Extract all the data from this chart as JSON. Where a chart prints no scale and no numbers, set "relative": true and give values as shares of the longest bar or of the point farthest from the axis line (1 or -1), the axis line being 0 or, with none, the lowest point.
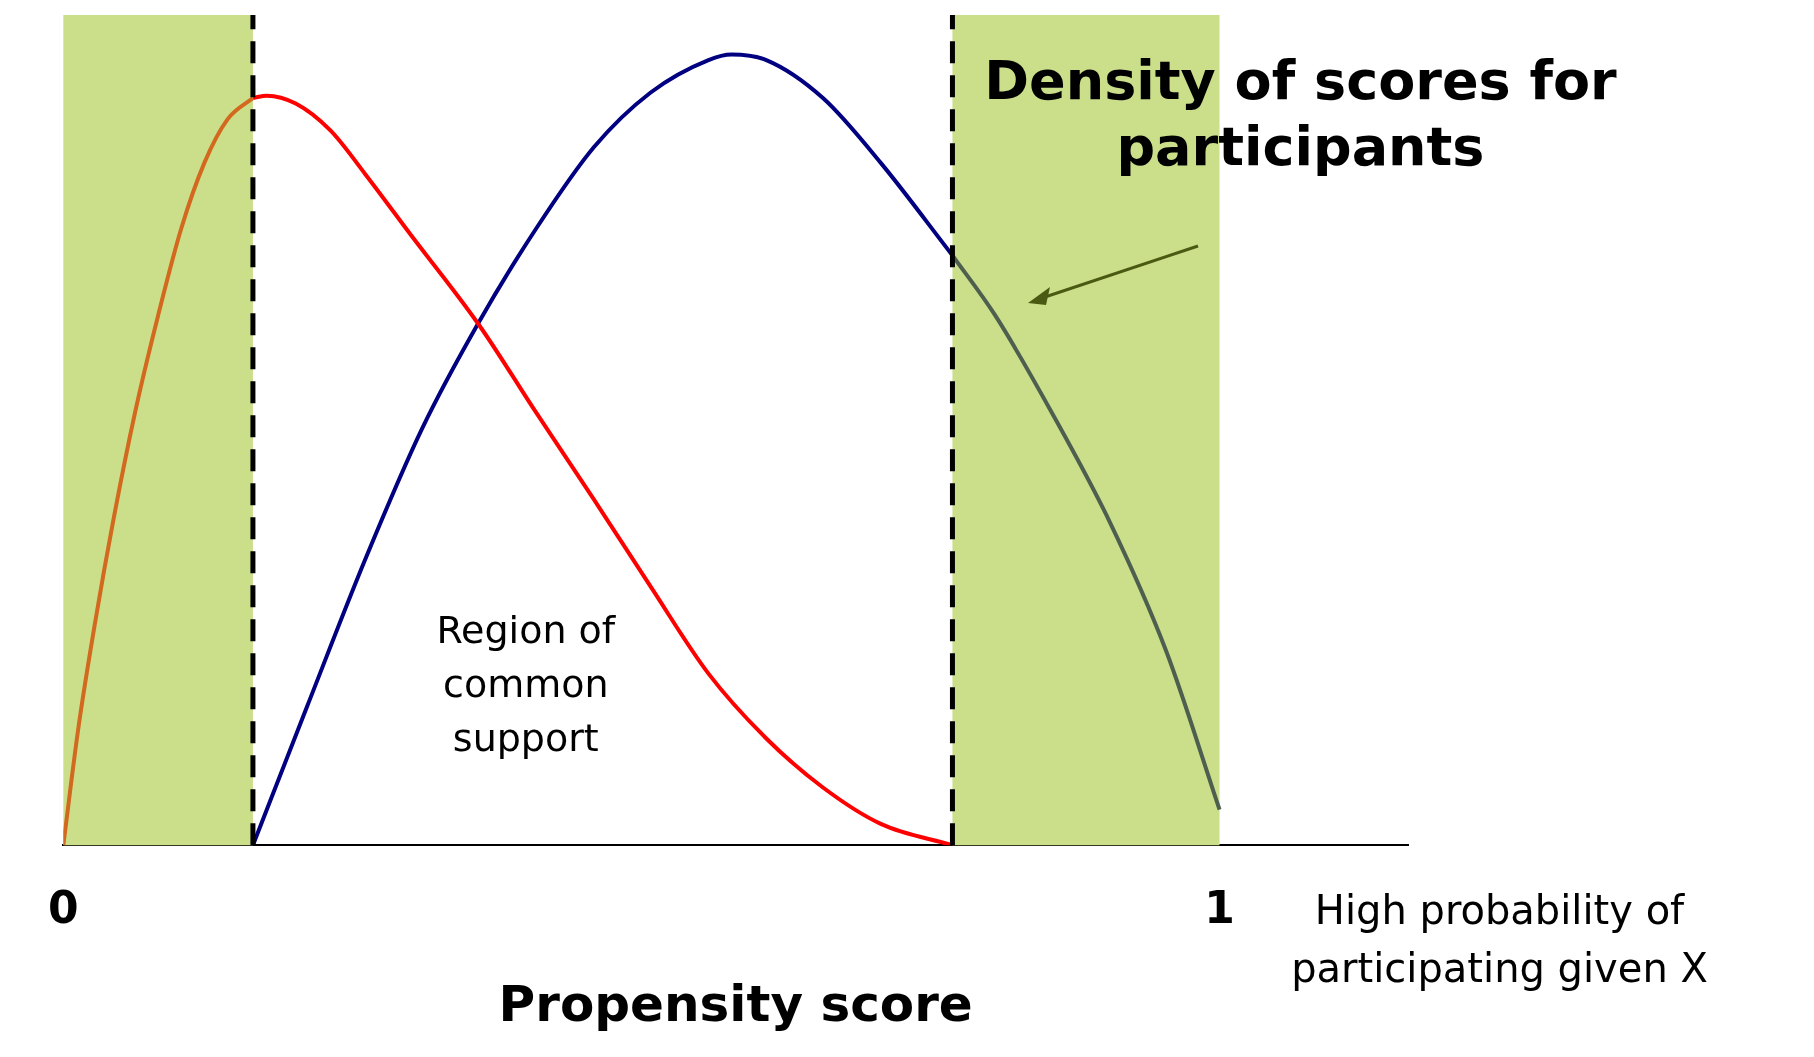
{
  "chart_data": {
    "type": "line",
    "relative": true,
    "xlabel": "Propensity score",
    "xlim": [
      0,
      1.163
    ],
    "xticks": [
      0,
      1
    ],
    "grid": false,
    "legend": false,
    "marker": "none",
    "series": [
      {
        "color": "#d2691e",
        "x": [
          0,
          0.013,
          0.028,
          0.043,
          0.062,
          0.082,
          0.102,
          0.122,
          0.142,
          0.164
        ],
        "values": [
          0,
          0.148,
          0.286,
          0.409,
          0.547,
          0.67,
          0.78,
          0.863,
          0.918,
          0.945
        ]
      },
      {
        "color": "#ff0000",
        "x": [
          0.164,
          0.176,
          0.201,
          0.231,
          0.261,
          0.3,
          0.36,
          0.409,
          0.459,
          0.508,
          0.558,
          0.608,
          0.657,
          0.707,
          0.769
        ],
        "values": [
          0.945,
          0.948,
          0.938,
          0.904,
          0.849,
          0.773,
          0.657,
          0.547,
          0.437,
          0.327,
          0.217,
          0.135,
          0.073,
          0.027,
          0
        ]
      },
      {
        "color": "#000080",
        "x": [
          0.164,
          0.211,
          0.261,
          0.31,
          0.36,
          0.409,
          0.459,
          0.508,
          0.558,
          0.578,
          0.608,
          0.657,
          0.707,
          0.769
        ],
        "values": [
          0,
          0.176,
          0.361,
          0.526,
          0.663,
          0.78,
          0.883,
          0.952,
          0.993,
          1,
          0.993,
          0.945,
          0.863,
          0.746
        ]
      },
      {
        "color": "#4f5f4f",
        "x": [
          0.769,
          0.806,
          0.855,
          0.905,
          0.954,
          1.0
        ],
        "values": [
          0.746,
          0.67,
          0.547,
          0.409,
          0.245,
          0.045
        ]
      }
    ],
    "ref_lines": [
      {
        "axis": "x",
        "value": 0.164,
        "color": "#000000",
        "line_style": "dashed"
      },
      {
        "axis": "x",
        "value": 0.769,
        "color": "#000000",
        "line_style": "dashed"
      }
    ],
    "bands": [
      {
        "axis": "x",
        "from": 0,
        "to": 0.164,
        "color": "#cbdf8a"
      },
      {
        "axis": "x",
        "from": 0.769,
        "to": 1.0,
        "color": "#cbdf8a"
      }
    ],
    "annotations": [
      "Region of common support",
      "Density of scores for participants",
      "High probability of participating given X"
    ]
  }
}
